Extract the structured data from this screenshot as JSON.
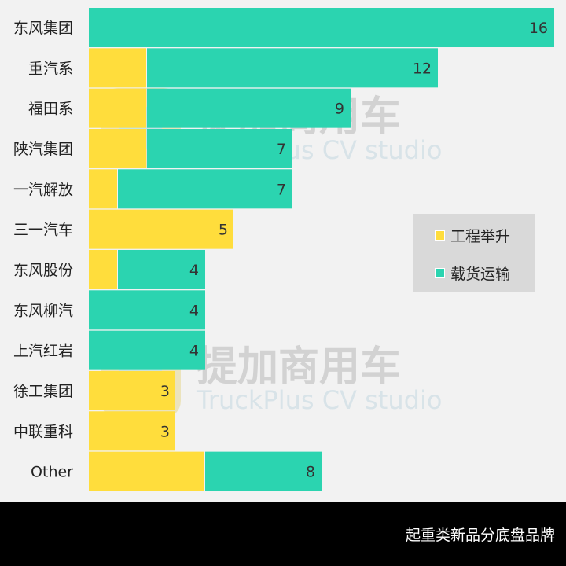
{
  "chart_data": {
    "type": "bar",
    "orientation": "horizontal",
    "stacked": true,
    "categories": [
      "东风集团",
      "重汽系",
      "福田系",
      "陕汽集团",
      "一汽解放",
      "三一汽车",
      "东风股份",
      "东风柳汽",
      "上汽红岩",
      "徐工集团",
      "中联重科",
      "Other"
    ],
    "series": [
      {
        "name": "工程举升",
        "color": "#ffdd3c",
        "values": [
          0,
          2,
          2,
          2,
          1,
          5,
          1,
          0,
          0,
          3,
          3,
          4
        ]
      },
      {
        "name": "载货运输",
        "color": "#2bd4b0",
        "values": [
          16,
          10,
          7,
          5,
          6,
          0,
          3,
          4,
          4,
          0,
          0,
          4
        ]
      }
    ],
    "totals": [
      16,
      12,
      9,
      7,
      7,
      5,
      4,
      4,
      4,
      3,
      3,
      8
    ],
    "xlim": [
      0,
      16
    ],
    "grid": false,
    "legend": "right"
  },
  "watermark": {
    "cn": "提加商用车",
    "en": "TruckPlus CV studio"
  },
  "footer": {
    "title": "起重类新品分底盘品牌"
  }
}
